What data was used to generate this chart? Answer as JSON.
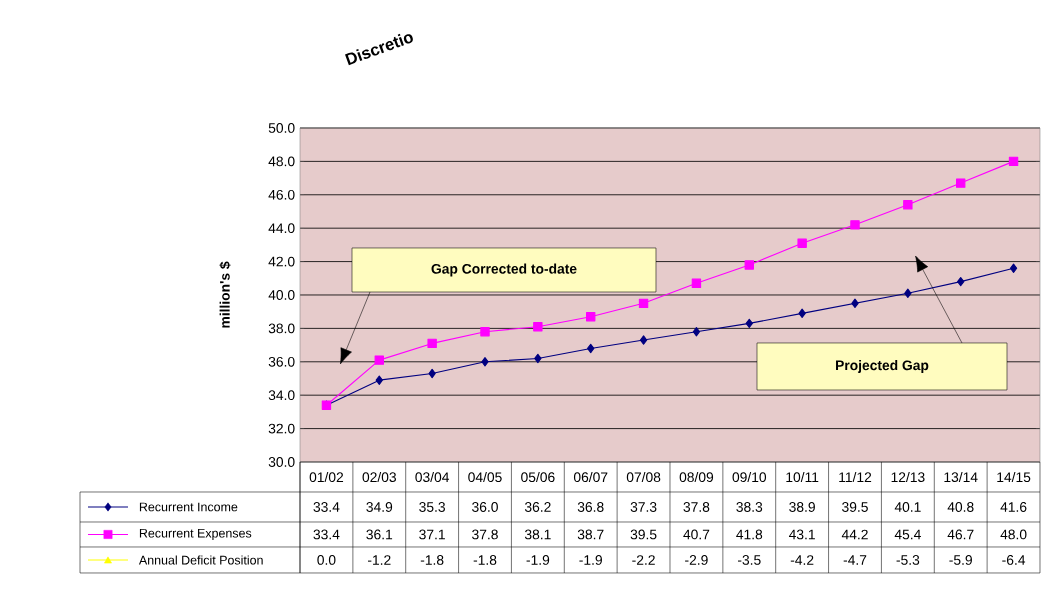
{
  "chart_data": {
    "type": "line",
    "title": "Discretio",
    "ylabel": "million's $",
    "categories": [
      "01/02",
      "02/03",
      "03/04",
      "04/05",
      "05/06",
      "06/07",
      "07/08",
      "08/09",
      "09/10",
      "10/11",
      "11/12",
      "12/13",
      "13/14",
      "14/15"
    ],
    "series": [
      {
        "name": "Recurrent Income",
        "color": "#000080",
        "marker": "diamond",
        "values": [
          33.4,
          34.9,
          35.3,
          36.0,
          36.2,
          36.8,
          37.3,
          37.8,
          38.3,
          38.9,
          39.5,
          40.1,
          40.8,
          41.6
        ],
        "value_labels": [
          "33.4",
          "34.9",
          "35.3",
          "36.0",
          "36.2",
          "36.8",
          "37.3",
          "37.8",
          "38.3",
          "38.9",
          "39.5",
          "40.1",
          "40.8",
          "41.6"
        ]
      },
      {
        "name": "Recurrent Expenses",
        "color": "#ff00ff",
        "marker": "square",
        "values": [
          33.4,
          36.1,
          37.1,
          37.8,
          38.1,
          38.7,
          39.5,
          40.7,
          41.8,
          43.1,
          44.2,
          45.4,
          46.7,
          48.0
        ],
        "value_labels": [
          "33.4",
          "36.1",
          "37.1",
          "37.8",
          "38.1",
          "38.7",
          "39.5",
          "40.7",
          "41.8",
          "43.1",
          "44.2",
          "45.4",
          "46.7",
          "48.0"
        ]
      },
      {
        "name": "Annual Deficit Position",
        "color": "#ffff00",
        "marker": "triangle",
        "values": [
          null,
          null,
          null,
          null,
          null,
          null,
          null,
          null,
          null,
          null,
          null,
          null,
          null,
          null
        ],
        "value_labels": [
          "0.0",
          "-1.2",
          "-1.8",
          "-1.8",
          "-1.9",
          "-1.9",
          "-2.2",
          "-2.9",
          "-3.5",
          "-4.2",
          "-4.7",
          "-5.3",
          "-5.9",
          "-6.4"
        ]
      }
    ],
    "ylim": [
      30,
      50
    ],
    "yticks": [
      {
        "value": 30,
        "label": "30.0"
      },
      {
        "value": 32,
        "label": "32.0"
      },
      {
        "value": 34,
        "label": "34.0"
      },
      {
        "value": 36,
        "label": "36.0"
      },
      {
        "value": 38,
        "label": "38.0"
      },
      {
        "value": 40,
        "label": "40.0"
      },
      {
        "value": 42,
        "label": "42.0"
      },
      {
        "value": 44,
        "label": "44.0"
      },
      {
        "value": 46,
        "label": "46.0"
      },
      {
        "value": 48,
        "label": "48.0"
      },
      {
        "value": 50,
        "label": "50.0"
      }
    ],
    "grid": "y",
    "legend": "bottom",
    "annotations": [
      "Gap Corrected to-date",
      "Projected Gap"
    ]
  }
}
